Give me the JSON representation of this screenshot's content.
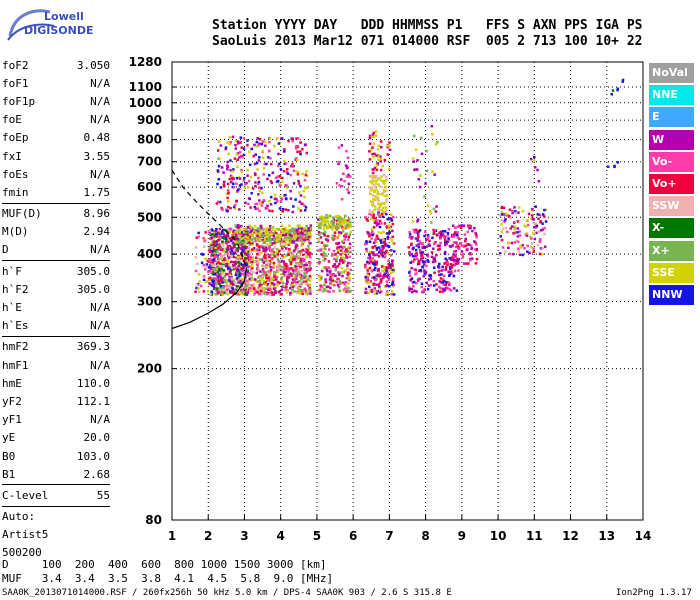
{
  "logo": {
    "line1": "Lowell",
    "line2": "DIGISONDE"
  },
  "header": {
    "line1": "Station YYYY DAY   DDD HHMMSS P1   FFS S AXN PPS IGA PS",
    "line2": "SaoLuis 2013 Mar12 071 014000 RSF  005 2 713 100 10+ 22"
  },
  "params": {
    "group1": [
      {
        "name": "foF2",
        "value": "3.050"
      },
      {
        "name": "foF1",
        "value": "N/A"
      },
      {
        "name": "foF1p",
        "value": "N/A"
      },
      {
        "name": "foE",
        "value": "N/A"
      },
      {
        "name": "foEp",
        "value": "0.48"
      },
      {
        "name": "fxI",
        "value": "3.55"
      },
      {
        "name": "foEs",
        "value": "N/A"
      },
      {
        "name": "fmin",
        "value": "1.75"
      }
    ],
    "group2": [
      {
        "name": "MUF(D)",
        "value": "8.96"
      },
      {
        "name": "M(D)",
        "value": "2.94"
      },
      {
        "name": "D",
        "value": "N/A"
      }
    ],
    "group3": [
      {
        "name": "h`F",
        "value": "305.0"
      },
      {
        "name": "h`F2",
        "value": "305.0"
      },
      {
        "name": "h`E",
        "value": "N/A"
      },
      {
        "name": "h`Es",
        "value": "N/A"
      }
    ],
    "group4": [
      {
        "name": "hmF2",
        "value": "369.3"
      },
      {
        "name": "hmF1",
        "value": "N/A"
      },
      {
        "name": "hmE",
        "value": "110.0"
      },
      {
        "name": "yF2",
        "value": "112.1"
      },
      {
        "name": "yF1",
        "value": "N/A"
      },
      {
        "name": "yE",
        "value": "20.0"
      },
      {
        "name": "B0",
        "value": "103.0"
      },
      {
        "name": "B1",
        "value": "2.68"
      }
    ],
    "group5": [
      {
        "name": "C-level",
        "value": "55"
      }
    ],
    "notes": [
      "Auto:",
      "Artist5",
      "500200"
    ]
  },
  "legend": [
    {
      "label": "NoVal",
      "color": "#a0a0a0"
    },
    {
      "label": "NNE",
      "color": "#00e8e8"
    },
    {
      "label": "E",
      "color": "#40a8ff"
    },
    {
      "label": "W",
      "color": "#b000b0"
    },
    {
      "label": "Vo-",
      "color": "#ff3ca8"
    },
    {
      "label": "Vo+",
      "color": "#f0003c"
    },
    {
      "label": "SSW",
      "color": "#f0b0b0"
    },
    {
      "label": "X-",
      "color": "#007800"
    },
    {
      "label": "X+",
      "color": "#78b450"
    },
    {
      "label": "SSE",
      "color": "#d2d200"
    },
    {
      "label": "NNW",
      "color": "#1414e6"
    }
  ],
  "muf_table": {
    "d_row": "D     100  200  400  600  800 1000 1500 3000 [km]",
    "muf_row": "MUF   3.4  3.4  3.5  3.8  4.1  4.5  5.8  9.0 [MHz]"
  },
  "footer": {
    "left": "SAA0K_2013071014000.RSF / 260fx256h 50 kHz 5.0 km / DPS-4 SAA0K 903 / 2.6 S 315.8 E",
    "right": "Ion2Png 1.3.17"
  },
  "chart_data": {
    "type": "scatter",
    "xlim": [
      1,
      14
    ],
    "ylim": [
      80,
      1280
    ],
    "x_ticks": [
      1,
      2,
      3,
      4,
      5,
      6,
      7,
      8,
      9,
      10,
      11,
      12,
      13,
      14
    ],
    "y_ticks": [
      80,
      200,
      300,
      400,
      500,
      600,
      700,
      800,
      900,
      1000,
      1100,
      1280
    ],
    "y_scale": "log",
    "grid": true,
    "legend_placement": "right",
    "clusters": [
      {
        "xmin": 1.6,
        "xmax": 2.0,
        "ymin": 320,
        "ymax": 470,
        "n": 40,
        "colors": [
          "#f0003c",
          "#ff3ca8",
          "#d2d200",
          "#1414e6",
          "#f0b0b0"
        ]
      },
      {
        "xmin": 2.0,
        "xmax": 3.1,
        "ymin": 315,
        "ymax": 470,
        "n": 700,
        "colors": [
          "#f0003c",
          "#ff3ca8",
          "#b000b0",
          "#d2d200",
          "#1414e6",
          "#007800",
          "#78b450",
          "#f0b0b0"
        ]
      },
      {
        "xmin": 3.1,
        "xmax": 4.8,
        "ymin": 315,
        "ymax": 470,
        "n": 750,
        "colors": [
          "#f0003c",
          "#ff3ca8",
          "#b000b0",
          "#d2d200",
          "#78b450",
          "#f0b0b0"
        ]
      },
      {
        "xmin": 2.7,
        "xmax": 4.8,
        "ymin": 430,
        "ymax": 480,
        "n": 250,
        "colors": [
          "#d2d200",
          "#d2d200",
          "#78b450",
          "#b000b0"
        ]
      },
      {
        "xmin": 2.2,
        "xmax": 4.7,
        "ymin": 520,
        "ymax": 820,
        "n": 300,
        "colors": [
          "#b000b0",
          "#ff3ca8",
          "#f0003c",
          "#d2d200",
          "#1414e6"
        ]
      },
      {
        "xmin": 5.0,
        "xmax": 5.9,
        "ymin": 320,
        "ymax": 500,
        "n": 260,
        "colors": [
          "#f0003c",
          "#ff3ca8",
          "#b000b0",
          "#d2d200",
          "#78b450"
        ]
      },
      {
        "xmin": 5.0,
        "xmax": 5.9,
        "ymin": 470,
        "ymax": 510,
        "n": 90,
        "colors": [
          "#d2d200",
          "#d2d200",
          "#78b450"
        ]
      },
      {
        "xmin": 5.5,
        "xmax": 5.9,
        "ymin": 560,
        "ymax": 780,
        "n": 25,
        "colors": [
          "#b000b0",
          "#ff3ca8"
        ]
      },
      {
        "xmin": 6.3,
        "xmax": 7.1,
        "ymin": 315,
        "ymax": 520,
        "n": 300,
        "colors": [
          "#f0003c",
          "#ff3ca8",
          "#b000b0",
          "#d2d200",
          "#1414e6"
        ]
      },
      {
        "xmin": 6.4,
        "xmax": 6.9,
        "ymin": 520,
        "ymax": 650,
        "n": 90,
        "colors": [
          "#d2d200",
          "#d2d200",
          "#f0b0b0"
        ]
      },
      {
        "xmin": 6.4,
        "xmax": 7.0,
        "ymin": 650,
        "ymax": 850,
        "n": 50,
        "colors": [
          "#b000b0",
          "#d2d200",
          "#f0003c"
        ]
      },
      {
        "xmin": 7.5,
        "xmax": 8.9,
        "ymin": 320,
        "ymax": 470,
        "n": 280,
        "colors": [
          "#f0003c",
          "#ff3ca8",
          "#b000b0",
          "#1414e6"
        ]
      },
      {
        "xmin": 7.6,
        "xmax": 8.3,
        "ymin": 480,
        "ymax": 880,
        "n": 35,
        "colors": [
          "#b000b0",
          "#d2d200",
          "#78b450"
        ]
      },
      {
        "xmin": 8.7,
        "xmax": 9.4,
        "ymin": 380,
        "ymax": 480,
        "n": 80,
        "colors": [
          "#f0003c",
          "#ff3ca8",
          "#b000b0"
        ]
      },
      {
        "xmin": 10.0,
        "xmax": 11.3,
        "ymin": 400,
        "ymax": 540,
        "n": 130,
        "colors": [
          "#f0003c",
          "#ff3ca8",
          "#b000b0",
          "#1414e6",
          "#d2d200",
          "#f0b0b0"
        ]
      },
      {
        "xmin": 10.8,
        "xmax": 11.1,
        "ymin": 620,
        "ymax": 760,
        "n": 6,
        "colors": [
          "#b000b0",
          "#1414e6",
          "#d2d200"
        ]
      },
      {
        "xmin": 13.0,
        "xmax": 13.3,
        "ymin": 660,
        "ymax": 710,
        "n": 4,
        "colors": [
          "#1414e6"
        ]
      },
      {
        "xmin": 13.0,
        "xmax": 13.3,
        "ymin": 1040,
        "ymax": 1110,
        "n": 4,
        "colors": [
          "#1414e6",
          "#007800"
        ]
      },
      {
        "xmin": 13.4,
        "xmax": 13.6,
        "ymin": 1140,
        "ymax": 1170,
        "n": 2,
        "colors": [
          "#1414e6"
        ]
      }
    ],
    "profile_solid": [
      [
        1,
        255
      ],
      [
        1.5,
        265
      ],
      [
        2.0,
        280
      ],
      [
        2.4,
        295
      ],
      [
        2.8,
        318
      ],
      [
        3.0,
        340
      ],
      [
        3.05,
        369
      ]
    ],
    "profile_dashed": [
      [
        1,
        665
      ],
      [
        1.3,
        600
      ],
      [
        1.7,
        545
      ],
      [
        2.1,
        500
      ],
      [
        2.5,
        460
      ],
      [
        2.8,
        430
      ],
      [
        3.05,
        369
      ]
    ]
  }
}
